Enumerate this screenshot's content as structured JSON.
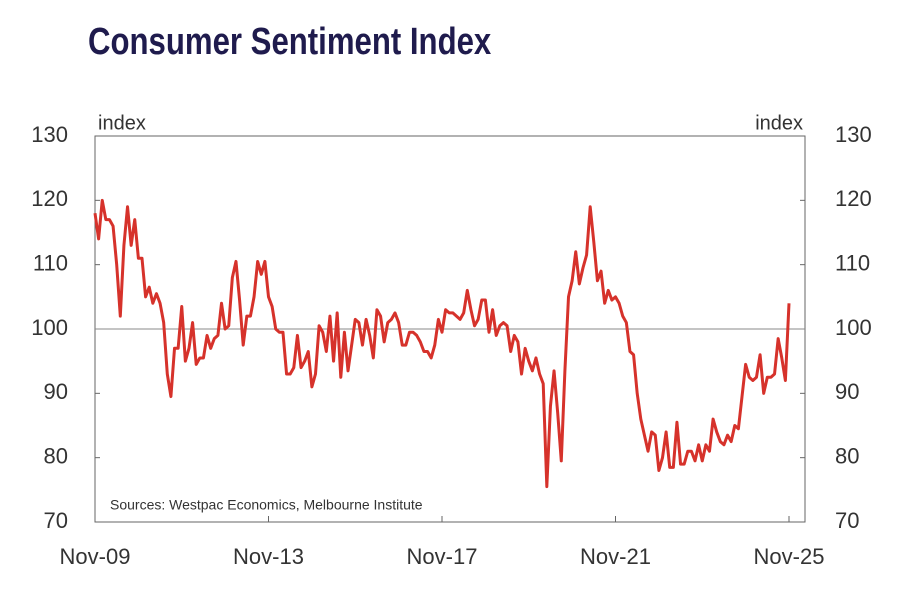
{
  "chart_data": {
    "type": "line",
    "title": "Consumer Sentiment Index",
    "ylabel": "index",
    "y2label": "index",
    "source": "Sources: Westpac Economics, Melbourne Institute",
    "categories": [
      "Nov-09",
      null,
      null,
      null,
      null,
      null,
      null,
      null,
      null,
      null,
      null,
      null,
      null,
      null,
      null,
      null,
      null,
      null,
      null,
      null,
      null,
      null,
      null,
      null,
      null,
      null,
      null,
      null,
      null,
      null,
      null,
      null,
      null,
      null,
      null,
      null,
      null,
      null,
      null,
      null,
      null,
      null,
      null,
      null,
      null,
      null,
      null,
      null,
      "Nov-13",
      null,
      null,
      null,
      null,
      null,
      null,
      null,
      null,
      null,
      null,
      null,
      null,
      null,
      null,
      null,
      null,
      null,
      null,
      null,
      null,
      null,
      null,
      null,
      null,
      null,
      null,
      null,
      null,
      null,
      null,
      null,
      null,
      null,
      null,
      null,
      null,
      null,
      null,
      null,
      null,
      null,
      null,
      null,
      null,
      null,
      null,
      null,
      "Nov-17",
      null,
      null,
      null,
      null,
      null,
      null,
      null,
      null,
      null,
      null,
      null,
      null,
      null,
      null,
      null,
      null,
      null,
      null,
      null,
      null,
      null,
      null,
      null,
      null,
      null,
      null,
      null,
      null,
      null,
      null,
      null,
      null,
      null,
      null,
      null,
      null,
      null,
      null,
      null,
      null,
      null,
      null,
      null,
      null,
      null,
      null,
      null,
      "Nov-21",
      null,
      null,
      null,
      null,
      null,
      null,
      null,
      null,
      null,
      null,
      null,
      null,
      null,
      null,
      null,
      null,
      null,
      null,
      null,
      null,
      null,
      null,
      null,
      null,
      null,
      null,
      null,
      null,
      null,
      null,
      null,
      null,
      null,
      null,
      null,
      null,
      null,
      null,
      null,
      null,
      null,
      null,
      null,
      null,
      null,
      null,
      null,
      "Nov-25"
    ],
    "values": [
      118,
      114,
      120,
      117,
      117,
      116,
      110,
      102,
      113,
      119,
      113,
      117,
      111,
      111,
      105,
      106.5,
      104,
      105.5,
      104,
      101,
      93,
      89.5,
      97,
      97,
      103.5,
      95,
      97,
      101,
      94.5,
      95.5,
      95.5,
      99,
      97,
      98.5,
      99,
      104,
      100,
      100.5,
      108,
      110.5,
      104.5,
      97.5,
      102,
      102,
      105,
      110.5,
      108.5,
      110.5,
      105,
      103.5,
      100,
      99.5,
      99.5,
      93,
      93,
      94,
      99,
      94,
      95,
      96.5,
      91,
      93,
      100.5,
      99.5,
      96.5,
      102,
      95,
      102.5,
      92.5,
      99.5,
      93.5,
      97.5,
      101.5,
      101,
      97.5,
      101.5,
      99,
      95.5,
      103,
      102,
      98,
      101,
      101.5,
      102.5,
      101,
      97.5,
      97.5,
      99.5,
      99.5,
      99,
      98,
      96.5,
      96.5,
      95.5,
      97.5,
      101.5,
      99.5,
      103,
      102.5,
      102.5,
      102,
      101.5,
      102.5,
      106,
      103,
      100.5,
      101.5,
      104.5,
      104.5,
      99.5,
      103,
      99,
      100.5,
      101,
      100.5,
      96.5,
      99,
      98,
      93,
      97,
      95,
      93.5,
      95.5,
      93,
      91.5,
      75.5,
      88,
      93.5,
      87,
      79.5,
      93.5,
      105,
      107.5,
      112,
      107,
      109.5,
      111.5,
      119,
      113.5,
      107.5,
      109,
      104,
      106,
      104.5,
      105,
      104,
      102,
      101,
      96.5,
      96,
      90,
      86,
      83.5,
      81,
      84,
      83.5,
      78,
      80,
      84,
      78.5,
      78.5,
      85.5,
      79,
      79,
      81,
      81,
      79.5,
      82,
      79.5,
      82,
      81,
      86,
      84,
      82.5,
      82,
      83.5,
      82.5,
      85,
      84.5,
      89.5,
      94.5,
      92.5,
      92,
      92.5,
      96,
      90,
      92.5,
      92.5,
      93,
      98.5,
      95.5,
      92,
      104
    ],
    "color": "#d6322b",
    "ylim": [
      70,
      130
    ],
    "yticks": [
      70,
      80,
      90,
      100,
      110,
      120,
      130
    ],
    "y2lim": [
      70,
      130
    ],
    "y2ticks": [
      70,
      80,
      90,
      100,
      110,
      120,
      130
    ],
    "hline": 100
  }
}
